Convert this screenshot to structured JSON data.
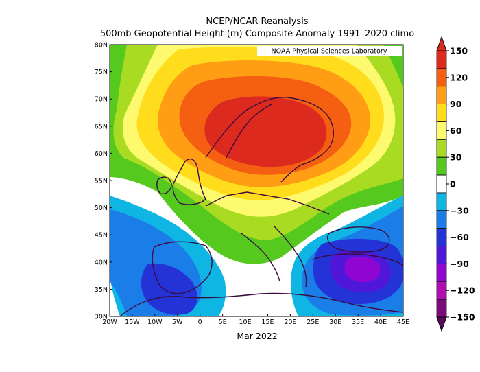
{
  "title_line1": "NCEP/NCAR Reanalysis",
  "title_line2": "500mb Geopotential Height (m) Composite Anomaly 1991–2020 climo",
  "credit": "NOAA Physical Sciences Laboratory",
  "period_label": "Mar 2022",
  "lat_ticks": [
    "80N",
    "75N",
    "70N",
    "65N",
    "60N",
    "55N",
    "50N",
    "45N",
    "40N",
    "35N",
    "30N"
  ],
  "lon_ticks": [
    "20W",
    "15W",
    "10W",
    "5W",
    "0",
    "5E",
    "10E",
    "15E",
    "20E",
    "25E",
    "30E",
    "35E",
    "40E",
    "45E"
  ],
  "colorbar": {
    "labels": [
      "150",
      "120",
      "90",
      "60",
      "30",
      "0",
      "−30",
      "−60",
      "−90",
      "−120",
      "−150"
    ],
    "colors": [
      "#dd2a1e",
      "#f55f12",
      "#ff9e15",
      "#ffdd1c",
      "#fdfa70",
      "#a9db22",
      "#55c91e",
      "#ffffff",
      "#0fb6e4",
      "#1b7ee8",
      "#2333d6",
      "#5117d8",
      "#8f05d2",
      "#b00db0",
      "#7b0a7a"
    ]
  },
  "chart_data": {
    "type": "heatmap",
    "title": "500mb Geopotential Height (m) Composite Anomaly 1991–2020 climo",
    "xlabel": "Mar 2022",
    "lon_range": [
      -20,
      45
    ],
    "lat_range": [
      30,
      80
    ],
    "value_range": [
      -150,
      150
    ],
    "contour_interval": 15,
    "anomaly_centers": [
      {
        "label": "positive anomaly max",
        "lon": 14,
        "lat": 62,
        "value": 135
      },
      {
        "label": "negative anomaly min (E. Mediterranean)",
        "lon": 34,
        "lat": 39,
        "value": -90
      },
      {
        "label": "negative anomaly min (Iberia/Morocco)",
        "lon": -5,
        "lat": 36,
        "value": -60
      }
    ]
  }
}
